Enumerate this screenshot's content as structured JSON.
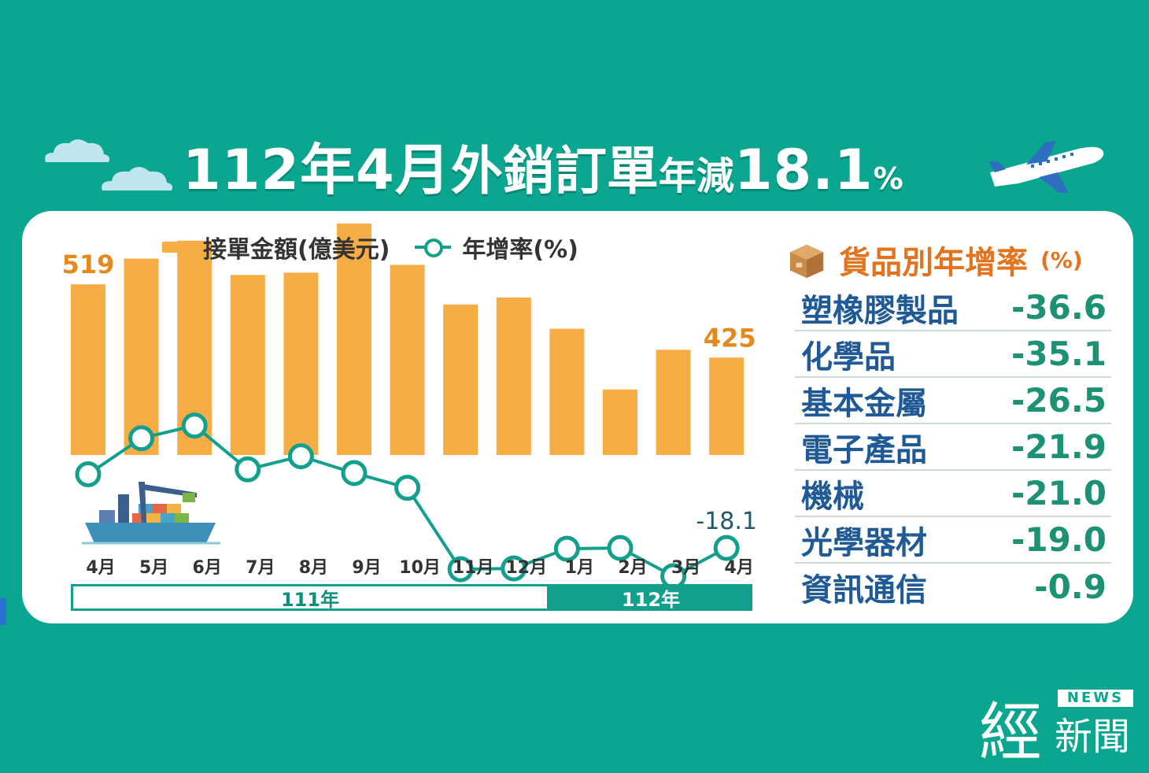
{
  "title": {
    "part1": "112年4月",
    "part2": "外銷訂單",
    "part3": "年減",
    "part4": "18.1",
    "part5": "%"
  },
  "legend": {
    "bars": "接單金額(億美元)",
    "line": "年增率(%)"
  },
  "chart_data": {
    "type": "bar",
    "categories": [
      "4月",
      "5月",
      "6月",
      "7月",
      "8月",
      "9月",
      "10月",
      "11月",
      "12月",
      "1月",
      "2月",
      "3月",
      "4月"
    ],
    "series": [
      {
        "name": "接單金額(億美元)",
        "type": "bar",
        "values": [
          519,
          552,
          575,
          531,
          534,
          597,
          544,
          493,
          502,
          462,
          384,
          435,
          425
        ],
        "labels": {
          "0": "519",
          "12": "425"
        }
      },
      {
        "name": "年增率(%)",
        "type": "line",
        "values": [
          -0.1,
          8.7,
          11.8,
          1.1,
          4.3,
          0.2,
          -3.4,
          -23.3,
          -23.1,
          -18.3,
          -18.1,
          -25.0,
          -18.1
        ],
        "labels": {
          "12": "-18.1"
        }
      }
    ],
    "year_groups": [
      {
        "label": "111年",
        "from": 0,
        "to": 8
      },
      {
        "label": "112年",
        "from": 9,
        "to": 12
      }
    ],
    "colors": {
      "bar": "#f6ad45",
      "line": "#12a08c",
      "value_label": "#e4891b"
    }
  },
  "table": {
    "title": "貨品別年增率",
    "unit": "(%)",
    "rows": [
      {
        "name": "塑橡膠製品",
        "value": "-36.6"
      },
      {
        "name": "化學品",
        "value": "-35.1"
      },
      {
        "name": "基本金屬",
        "value": "-26.5"
      },
      {
        "name": "電子產品",
        "value": "-21.9"
      },
      {
        "name": "機械",
        "value": "-21.0"
      },
      {
        "name": "光學器材",
        "value": "-19.0"
      },
      {
        "name": "資訊通信",
        "value": "-0.9"
      }
    ]
  },
  "logo": {
    "news": "NEWS",
    "jing": "經",
    "xinwen": "新聞"
  },
  "colors": {
    "background": "#0aa68f",
    "accent_orange": "#e4731e",
    "navy_text": "#1f5a96"
  }
}
